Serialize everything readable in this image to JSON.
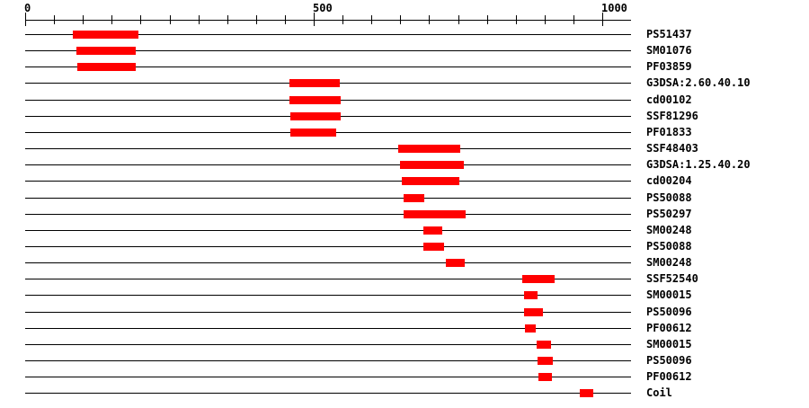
{
  "chart_data": {
    "type": "bar",
    "subtype": "protein-domain-tracks",
    "orientation": "horizontal",
    "title": "",
    "background": "#ffffff",
    "bar_color": "#ff0000",
    "line_color": "#000000",
    "text_color": "#000000",
    "axis": {
      "position": "top",
      "min": 0,
      "max": 1000,
      "minor_tick_interval": 50,
      "major_ticks": [
        0,
        500,
        1000
      ],
      "major_tick_labels": [
        "0",
        "500",
        "1000"
      ],
      "row_line_extent_units": 1050,
      "grid": false
    },
    "rows": [
      {
        "label": "PS51437",
        "start": 83,
        "end": 197
      },
      {
        "label": "SM01076",
        "start": 89,
        "end": 192
      },
      {
        "label": "PF03859",
        "start": 91,
        "end": 193
      },
      {
        "label": "G3DSA:2.60.40.10",
        "start": 458,
        "end": 545
      },
      {
        "label": "cd00102",
        "start": 458,
        "end": 547
      },
      {
        "label": "SSF81296",
        "start": 460,
        "end": 547
      },
      {
        "label": "PF01833",
        "start": 460,
        "end": 539
      },
      {
        "label": "SSF48403",
        "start": 647,
        "end": 754
      },
      {
        "label": "G3DSA:1.25.40.20",
        "start": 650,
        "end": 760
      },
      {
        "label": "cd00204",
        "start": 652,
        "end": 751
      },
      {
        "label": "PS50088",
        "start": 656,
        "end": 692
      },
      {
        "label": "PS50297",
        "start": 656,
        "end": 763
      },
      {
        "label": "SM00248",
        "start": 690,
        "end": 722
      },
      {
        "label": "PS50088",
        "start": 690,
        "end": 726
      },
      {
        "label": "SM00248",
        "start": 729,
        "end": 762
      },
      {
        "label": "SSF52540",
        "start": 861,
        "end": 917
      },
      {
        "label": "SM00015",
        "start": 865,
        "end": 888
      },
      {
        "label": "PS50096",
        "start": 864,
        "end": 896
      },
      {
        "label": "PF00612",
        "start": 866,
        "end": 885
      },
      {
        "label": "SM00015",
        "start": 887,
        "end": 912
      },
      {
        "label": "PS50096",
        "start": 888,
        "end": 915
      },
      {
        "label": "PF00612",
        "start": 889,
        "end": 912
      },
      {
        "label": "Coil",
        "start": 961,
        "end": 984
      }
    ]
  }
}
